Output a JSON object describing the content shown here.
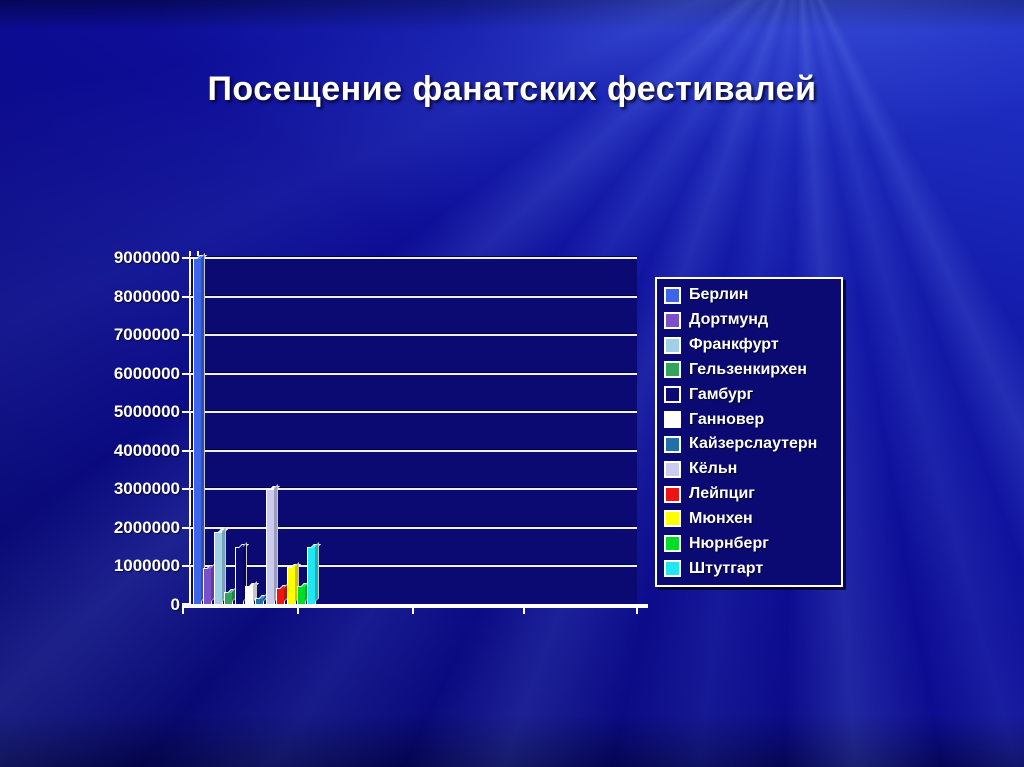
{
  "slide": {
    "title": "Посещение фанатских фестивалей"
  },
  "chart_data": {
    "type": "bar",
    "title": "Посещение фанатских фестивалей",
    "categories": [
      ""
    ],
    "series": [
      {
        "name": "Берлин",
        "value": 9000000,
        "color": "#3E64E8"
      },
      {
        "name": "Дортмунд",
        "value": 950000,
        "color": "#7A4FC8"
      },
      {
        "name": "Франкфурт",
        "value": 1900000,
        "color": "#9FD0E8"
      },
      {
        "name": "Гельзенкирхен",
        "value": 350000,
        "color": "#33A35C"
      },
      {
        "name": "Гамбург",
        "value": 1500000,
        "color": "#0A0A72"
      },
      {
        "name": "Ганновер",
        "value": 480000,
        "color": "#FFFFFF"
      },
      {
        "name": "Кайзерслаутерн",
        "value": 180000,
        "color": "#2270A8"
      },
      {
        "name": "Кёльн",
        "value": 3000000,
        "color": "#CBCBEF"
      },
      {
        "name": "Лейпциг",
        "value": 450000,
        "color": "#EE1414"
      },
      {
        "name": "Мюнхен",
        "value": 980000,
        "color": "#FFFF00"
      },
      {
        "name": "Нюрнберг",
        "value": 500000,
        "color": "#00DC28"
      },
      {
        "name": "Штутгарт",
        "value": 1500000,
        "color": "#22E6F0"
      }
    ],
    "ylim": [
      0,
      9000000
    ],
    "y_tick_labels": [
      "9000000",
      "8000000",
      "7000000",
      "6000000",
      "5000000",
      "4000000",
      "3000000",
      "2000000",
      "1000000",
      "0"
    ],
    "grid": true,
    "legend_position": "right",
    "x_tick_count": 4,
    "background_color": "#0C0C90",
    "plot_background_color": "#0A0A72",
    "text_color": "#FFFFFF"
  }
}
